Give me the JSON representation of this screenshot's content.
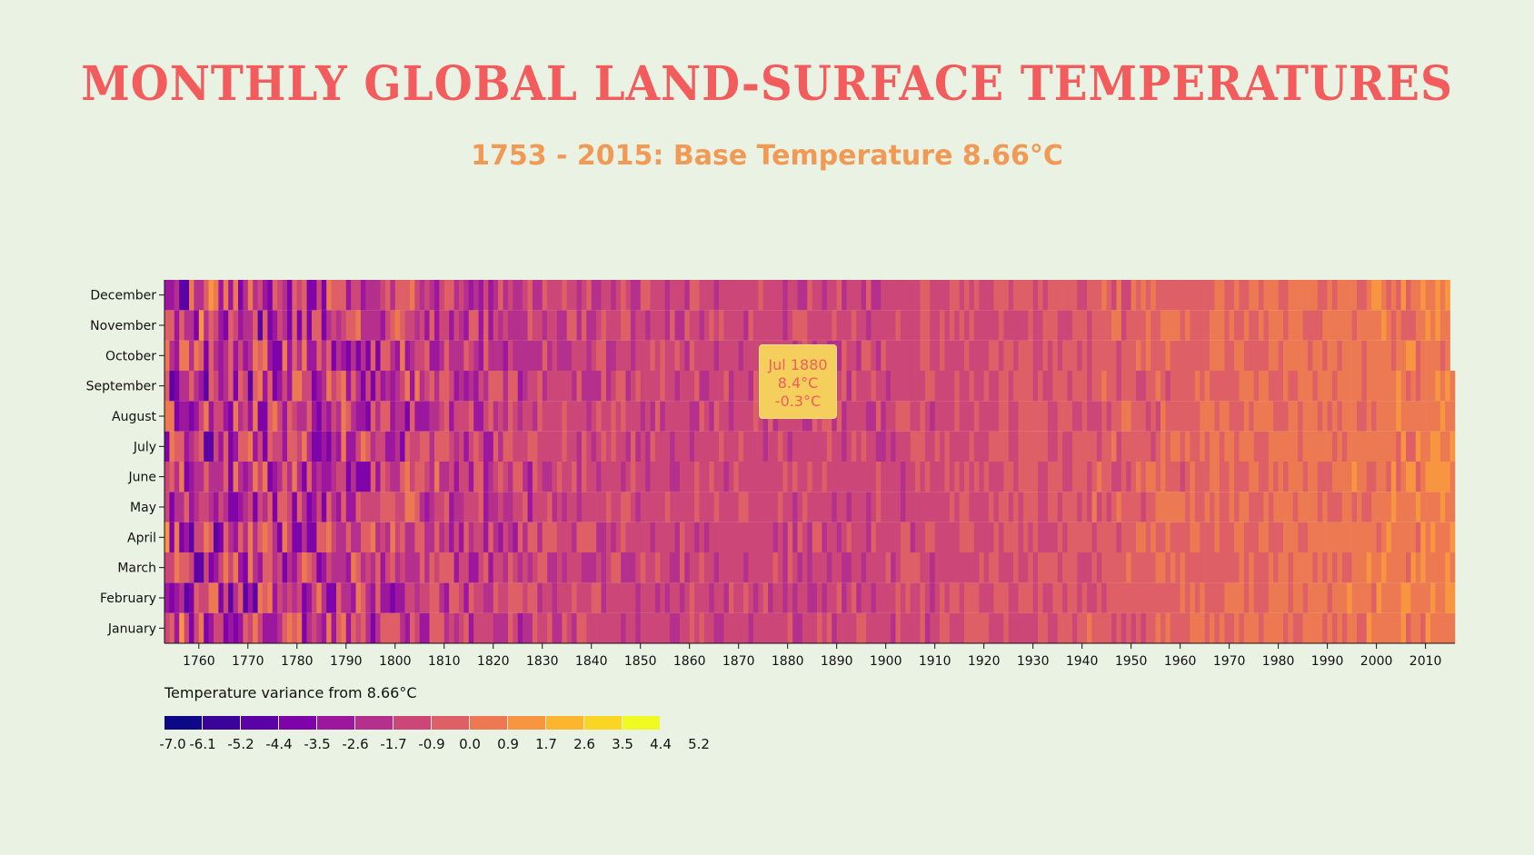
{
  "header": {
    "title": "MONTHLY GLOBAL LAND-SURFACE TEMPERATURES",
    "subtitle": "1753 - 2015: Base Temperature 8.66°C"
  },
  "tooltip": {
    "date": "Jul 1880",
    "temperature": "8.4°C",
    "variance": "-0.3°C"
  },
  "chart_data": {
    "type": "heatmap",
    "title": "MONTHLY GLOBAL LAND-SURFACE TEMPERATURES",
    "subtitle": "1753 - 2015: Base Temperature 8.66°C",
    "base_temperature": 8.66,
    "x": {
      "start_year": 1753,
      "end_year": 2015,
      "ticks": [
        1760,
        1770,
        1780,
        1790,
        1800,
        1810,
        1820,
        1830,
        1840,
        1850,
        1860,
        1870,
        1880,
        1890,
        1900,
        1910,
        1920,
        1930,
        1940,
        1950,
        1960,
        1970,
        1980,
        1990,
        2000,
        2010
      ]
    },
    "y": {
      "labels": [
        "January",
        "February",
        "March",
        "April",
        "May",
        "June",
        "July",
        "August",
        "September",
        "October",
        "November",
        "December"
      ]
    },
    "legend": {
      "title": "Temperature variance from 8.66°C",
      "ticks": [
        "-7.0",
        "-6.1",
        "-5.2",
        "-4.4",
        "-3.5",
        "-2.6",
        "-1.7",
        "-0.9",
        "0.0",
        "0.9",
        "1.7",
        "2.6",
        "3.5",
        "4.4",
        "5.2"
      ],
      "colors": [
        "#0d0887",
        "#3a049a",
        "#5c01a6",
        "#7e03a8",
        "#9c179e",
        "#b52f8c",
        "#cc4778",
        "#de5f65",
        "#ed7953",
        "#f89540",
        "#fdb42f",
        "#fbd524",
        "#f0f921"
      ]
    }
  }
}
